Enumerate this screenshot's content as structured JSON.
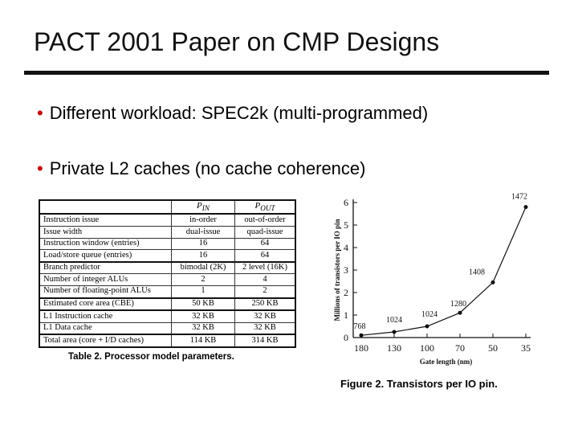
{
  "slide": {
    "title": "PACT 2001 Paper on CMP Designs",
    "bullets": [
      "Different workload: SPEC2k (multi-programmed)",
      "Private L2 caches (no cache coherence)"
    ],
    "bullet_symbol": "•"
  },
  "table": {
    "headers": [
      "",
      "P",
      "P"
    ],
    "header_subscripts": [
      "",
      "IN",
      "OUT"
    ],
    "rows": [
      [
        "Instruction issue",
        "in-order",
        "out-of-order"
      ],
      [
        "Issue width",
        "dual-issue",
        "quad-issue"
      ],
      [
        "Instruction window (entries)",
        "16",
        "64"
      ],
      [
        "Load/store queue (entries)",
        "16",
        "64"
      ],
      [
        "Branch predictor",
        "bimodal (2K)",
        "2 level (16K)"
      ],
      [
        "Number of integer ALUs",
        "2",
        "4"
      ],
      [
        "Number of floating-point ALUs",
        "1",
        "2"
      ],
      [
        "Estimated core area (CBE)",
        "50 KB",
        "250 KB"
      ],
      [
        "L1 Instruction cache",
        "32 KB",
        "32 KB"
      ],
      [
        "L1 Data cache",
        "32 KB",
        "32 KB"
      ],
      [
        "Total area (core + I/D caches)",
        "114 KB",
        "314 KB"
      ]
    ],
    "caption": "Table 2. Processor model parameters."
  },
  "chart_data": {
    "type": "line",
    "title": "",
    "xlabel": "Gate length (nm)",
    "ylabel": "Millions of transistors per IO pin",
    "x": [
      "180",
      "130",
      "100",
      "70",
      "50",
      "35"
    ],
    "y": [
      0.1,
      0.25,
      0.5,
      1.1,
      2.45,
      5.8
    ],
    "point_labels": [
      "768",
      "1024",
      "1024",
      "1280",
      "1408",
      "1472"
    ],
    "ylim": [
      0,
      6
    ],
    "yticks": [
      "0",
      "1",
      "2",
      "3",
      "4",
      "5",
      "6"
    ],
    "caption": "Figure 2. Transistors per IO pin.",
    "grid": false
  }
}
